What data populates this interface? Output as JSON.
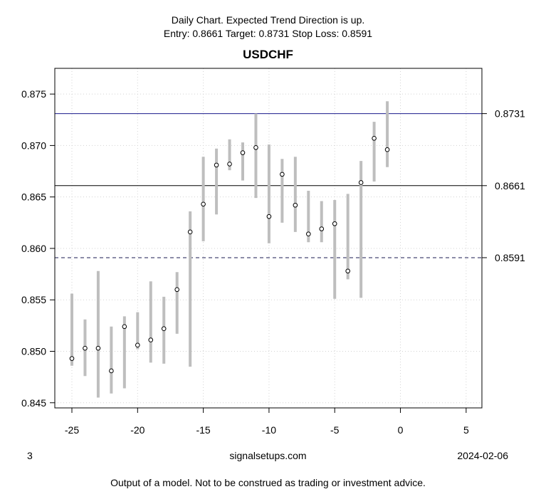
{
  "header": {
    "subtitle_line1": "Daily Chart. Expected Trend Direction is up.",
    "subtitle_line2": "Entry: 0.8661 Target: 0.8731 Stop Loss: 0.8591",
    "title": "USDCHF"
  },
  "footer": {
    "left": "3",
    "center": "signalsetups.com",
    "right": "2024-02-06",
    "disclaimer": "Output of a model. Not to be construed as trading or investment advice."
  },
  "chart_data": {
    "type": "scatter",
    "title": "USDCHF",
    "xlabel": "",
    "ylabel": "",
    "xlim": [
      -26.3,
      6.2
    ],
    "ylim": [
      0.8445,
      0.8775
    ],
    "x_ticks": [
      -25,
      -20,
      -15,
      -10,
      -5,
      0,
      5
    ],
    "y_ticks": [
      0.845,
      0.85,
      0.855,
      0.86,
      0.865,
      0.87,
      0.875
    ],
    "y_tick_labels": [
      "0.845",
      "0.850",
      "0.855",
      "0.860",
      "0.865",
      "0.870",
      "0.875"
    ],
    "grid": true,
    "series": [
      {
        "x": [
          -25,
          -24,
          -23,
          -22,
          -21,
          -20,
          -19,
          -18,
          -17,
          -16,
          -15,
          -14,
          -13,
          -12,
          -11,
          -10,
          -9,
          -8,
          -7,
          -6,
          -5,
          -4,
          -3,
          -2,
          -1
        ],
        "close": [
          0.8493,
          0.8503,
          0.8503,
          0.8481,
          0.8524,
          0.8506,
          0.8511,
          0.8522,
          0.856,
          0.8616,
          0.8643,
          0.8681,
          0.8682,
          0.8693,
          0.8698,
          0.8631,
          0.8672,
          0.8642,
          0.8614,
          0.8619,
          0.8624,
          0.8578,
          0.8664,
          0.8707,
          0.8696
        ],
        "low": [
          0.8486,
          0.8476,
          0.8455,
          0.8459,
          0.8464,
          0.8502,
          0.8489,
          0.8488,
          0.8517,
          0.8485,
          0.8607,
          0.8633,
          0.8676,
          0.8666,
          0.8649,
          0.8605,
          0.8625,
          0.8616,
          0.8606,
          0.8606,
          0.8551,
          0.857,
          0.8552,
          0.8665,
          0.8679
        ],
        "high": [
          0.8556,
          0.8531,
          0.8578,
          0.8524,
          0.8534,
          0.8538,
          0.8568,
          0.8553,
          0.8577,
          0.8636,
          0.8689,
          0.8697,
          0.8706,
          0.8703,
          0.8731,
          0.8701,
          0.8687,
          0.8689,
          0.8656,
          0.8646,
          0.8647,
          0.8653,
          0.8685,
          0.8723,
          0.8743
        ]
      }
    ],
    "hlines": [
      {
        "value": 0.8731,
        "label": "0.8731",
        "color": "#1a1a8c",
        "style": "solid"
      },
      {
        "value": 0.8661,
        "label": "0.8661",
        "color": "#000000",
        "style": "solid"
      },
      {
        "value": 0.8591,
        "label": "0.8591",
        "color": "#1a1a50",
        "style": "dashed"
      }
    ],
    "colors": {
      "range_bar": "#bebebe",
      "point_fill": "#ffffff",
      "point_stroke": "#000000",
      "grid": "#d3d3d3"
    }
  }
}
